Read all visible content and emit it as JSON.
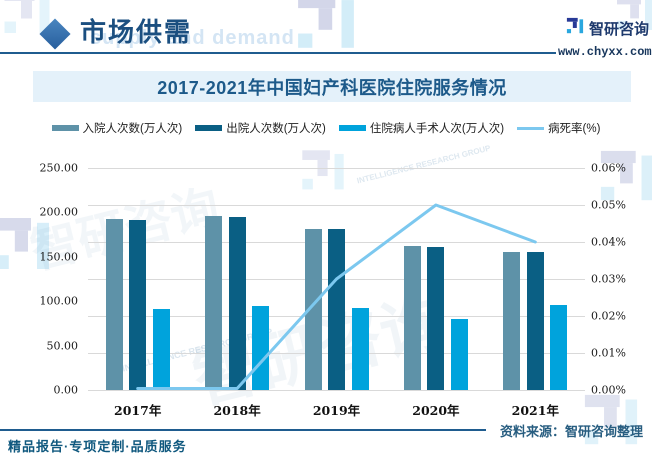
{
  "header": {
    "section_title": "市场供需",
    "section_title_en": "supply and demand",
    "brand": {
      "name": "智研咨询",
      "url": "www.chyxx.com"
    }
  },
  "chart": {
    "title": "2017-2021年中国妇产科医院住院服务情况"
  },
  "chart_data": {
    "type": "bar",
    "subtype": "grouped bars + line on secondary axis",
    "title": "2017-2021年中国妇产科医院住院服务情况",
    "categories": [
      "2017年",
      "2018年",
      "2019年",
      "2020年",
      "2021年"
    ],
    "series": [
      {
        "name": "入院人次数(万人次)",
        "type": "bar",
        "color": "#5E92A8",
        "axis": "left",
        "values": [
          193,
          196,
          181,
          162,
          156
        ]
      },
      {
        "name": "出院人次数(万人次)",
        "type": "bar",
        "color": "#0A5F84",
        "axis": "left",
        "values": [
          192,
          195,
          181,
          161,
          156
        ]
      },
      {
        "name": "住院病人手术人次(万人次)",
        "type": "bar",
        "color": "#00A3DC",
        "axis": "left",
        "values": [
          91,
          95,
          92,
          80,
          96
        ]
      },
      {
        "name": "病死率(%)",
        "type": "line",
        "color": "#7CC8EF",
        "axis": "right",
        "values": [
          0.0,
          0.0,
          0.03,
          0.05,
          0.04
        ]
      }
    ],
    "left_axis": {
      "min": 0,
      "max": 250,
      "ticks": [
        "0.00",
        "50.00",
        "100.00",
        "150.00",
        "200.00",
        "250.00"
      ]
    },
    "right_axis": {
      "min": 0,
      "max": 0.06,
      "ticks": [
        "0.00%",
        "0.01%",
        "0.02%",
        "0.03%",
        "0.04%",
        "0.05%",
        "0.06%"
      ]
    },
    "grid": true,
    "legend_position": "top"
  },
  "watermarks": {
    "brand_text": "智研咨询",
    "en_text": "INTELLIGENCE RESEARCH GROUP"
  },
  "footer": {
    "tagline": "精品报告·专项定制·品质服务",
    "source": "资料来源：智研咨询整理"
  },
  "colors": {
    "accent_rule": "#1F5C8F",
    "title_band_bg": "#E4F1FA",
    "title_text": "#1D5A8A",
    "brand_navy": "#283A97",
    "brand_lightblue": "#2AA7DF",
    "gridline": "#D9D9D9"
  }
}
